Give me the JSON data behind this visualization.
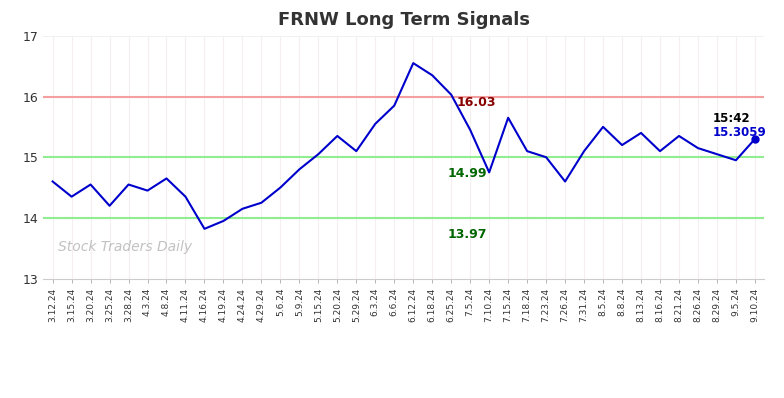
{
  "title": "FRNW Long Term Signals",
  "title_color": "#333333",
  "background_color": "#ffffff",
  "ylim": [
    13,
    17
  ],
  "yticks": [
    13,
    14,
    15,
    16,
    17
  ],
  "hline_red": 16.0,
  "hline_green_upper": 15.0,
  "hline_green_lower": 14.0,
  "hline_red_color": "#f4a0a0",
  "hline_green_color": "#90ee90",
  "line_color": "#0000cc",
  "annotation_high_val": "16.03",
  "annotation_high_color": "#880000",
  "annotation_mid_val": "14.99",
  "annotation_mid_color": "#006600",
  "annotation_low_val": "13.97",
  "annotation_low_color": "#006600",
  "annotation_last_time": "15:42",
  "annotation_last_val": "15.3059",
  "annotation_last_time_color": "#000000",
  "annotation_last_val_color": "#0000cc",
  "watermark": "Stock Traders Daily",
  "watermark_color": "#bbbbbb",
  "x_labels": [
    "3.12.24",
    "3.15.24",
    "3.20.24",
    "3.25.24",
    "3.28.24",
    "4.3.24",
    "4.8.24",
    "4.11.24",
    "4.16.24",
    "4.19.24",
    "4.24.24",
    "4.29.24",
    "5.6.24",
    "5.9.24",
    "5.15.24",
    "5.20.24",
    "5.29.24",
    "6.3.24",
    "6.6.24",
    "6.12.24",
    "6.18.24",
    "6.25.24",
    "7.5.24",
    "7.10.24",
    "7.15.24",
    "7.18.24",
    "7.23.24",
    "7.26.24",
    "7.31.24",
    "8.5.24",
    "8.8.24",
    "8.13.24",
    "8.16.24",
    "8.21.24",
    "8.26.24",
    "8.29.24",
    "9.5.24",
    "9.10.24"
  ],
  "y_values": [
    14.6,
    14.35,
    14.55,
    14.2,
    14.55,
    14.45,
    14.65,
    14.35,
    13.82,
    13.95,
    14.15,
    14.25,
    14.5,
    14.8,
    15.05,
    15.35,
    15.1,
    15.55,
    15.85,
    16.55,
    16.35,
    16.03,
    15.45,
    14.75,
    15.65,
    15.1,
    15.0,
    14.6,
    15.1,
    15.5,
    15.2,
    15.4,
    15.1,
    15.35,
    15.15,
    15.05,
    14.95,
    15.3
  ],
  "grid_color": "#eeeeee",
  "vgrid_color": "#f5eeee"
}
